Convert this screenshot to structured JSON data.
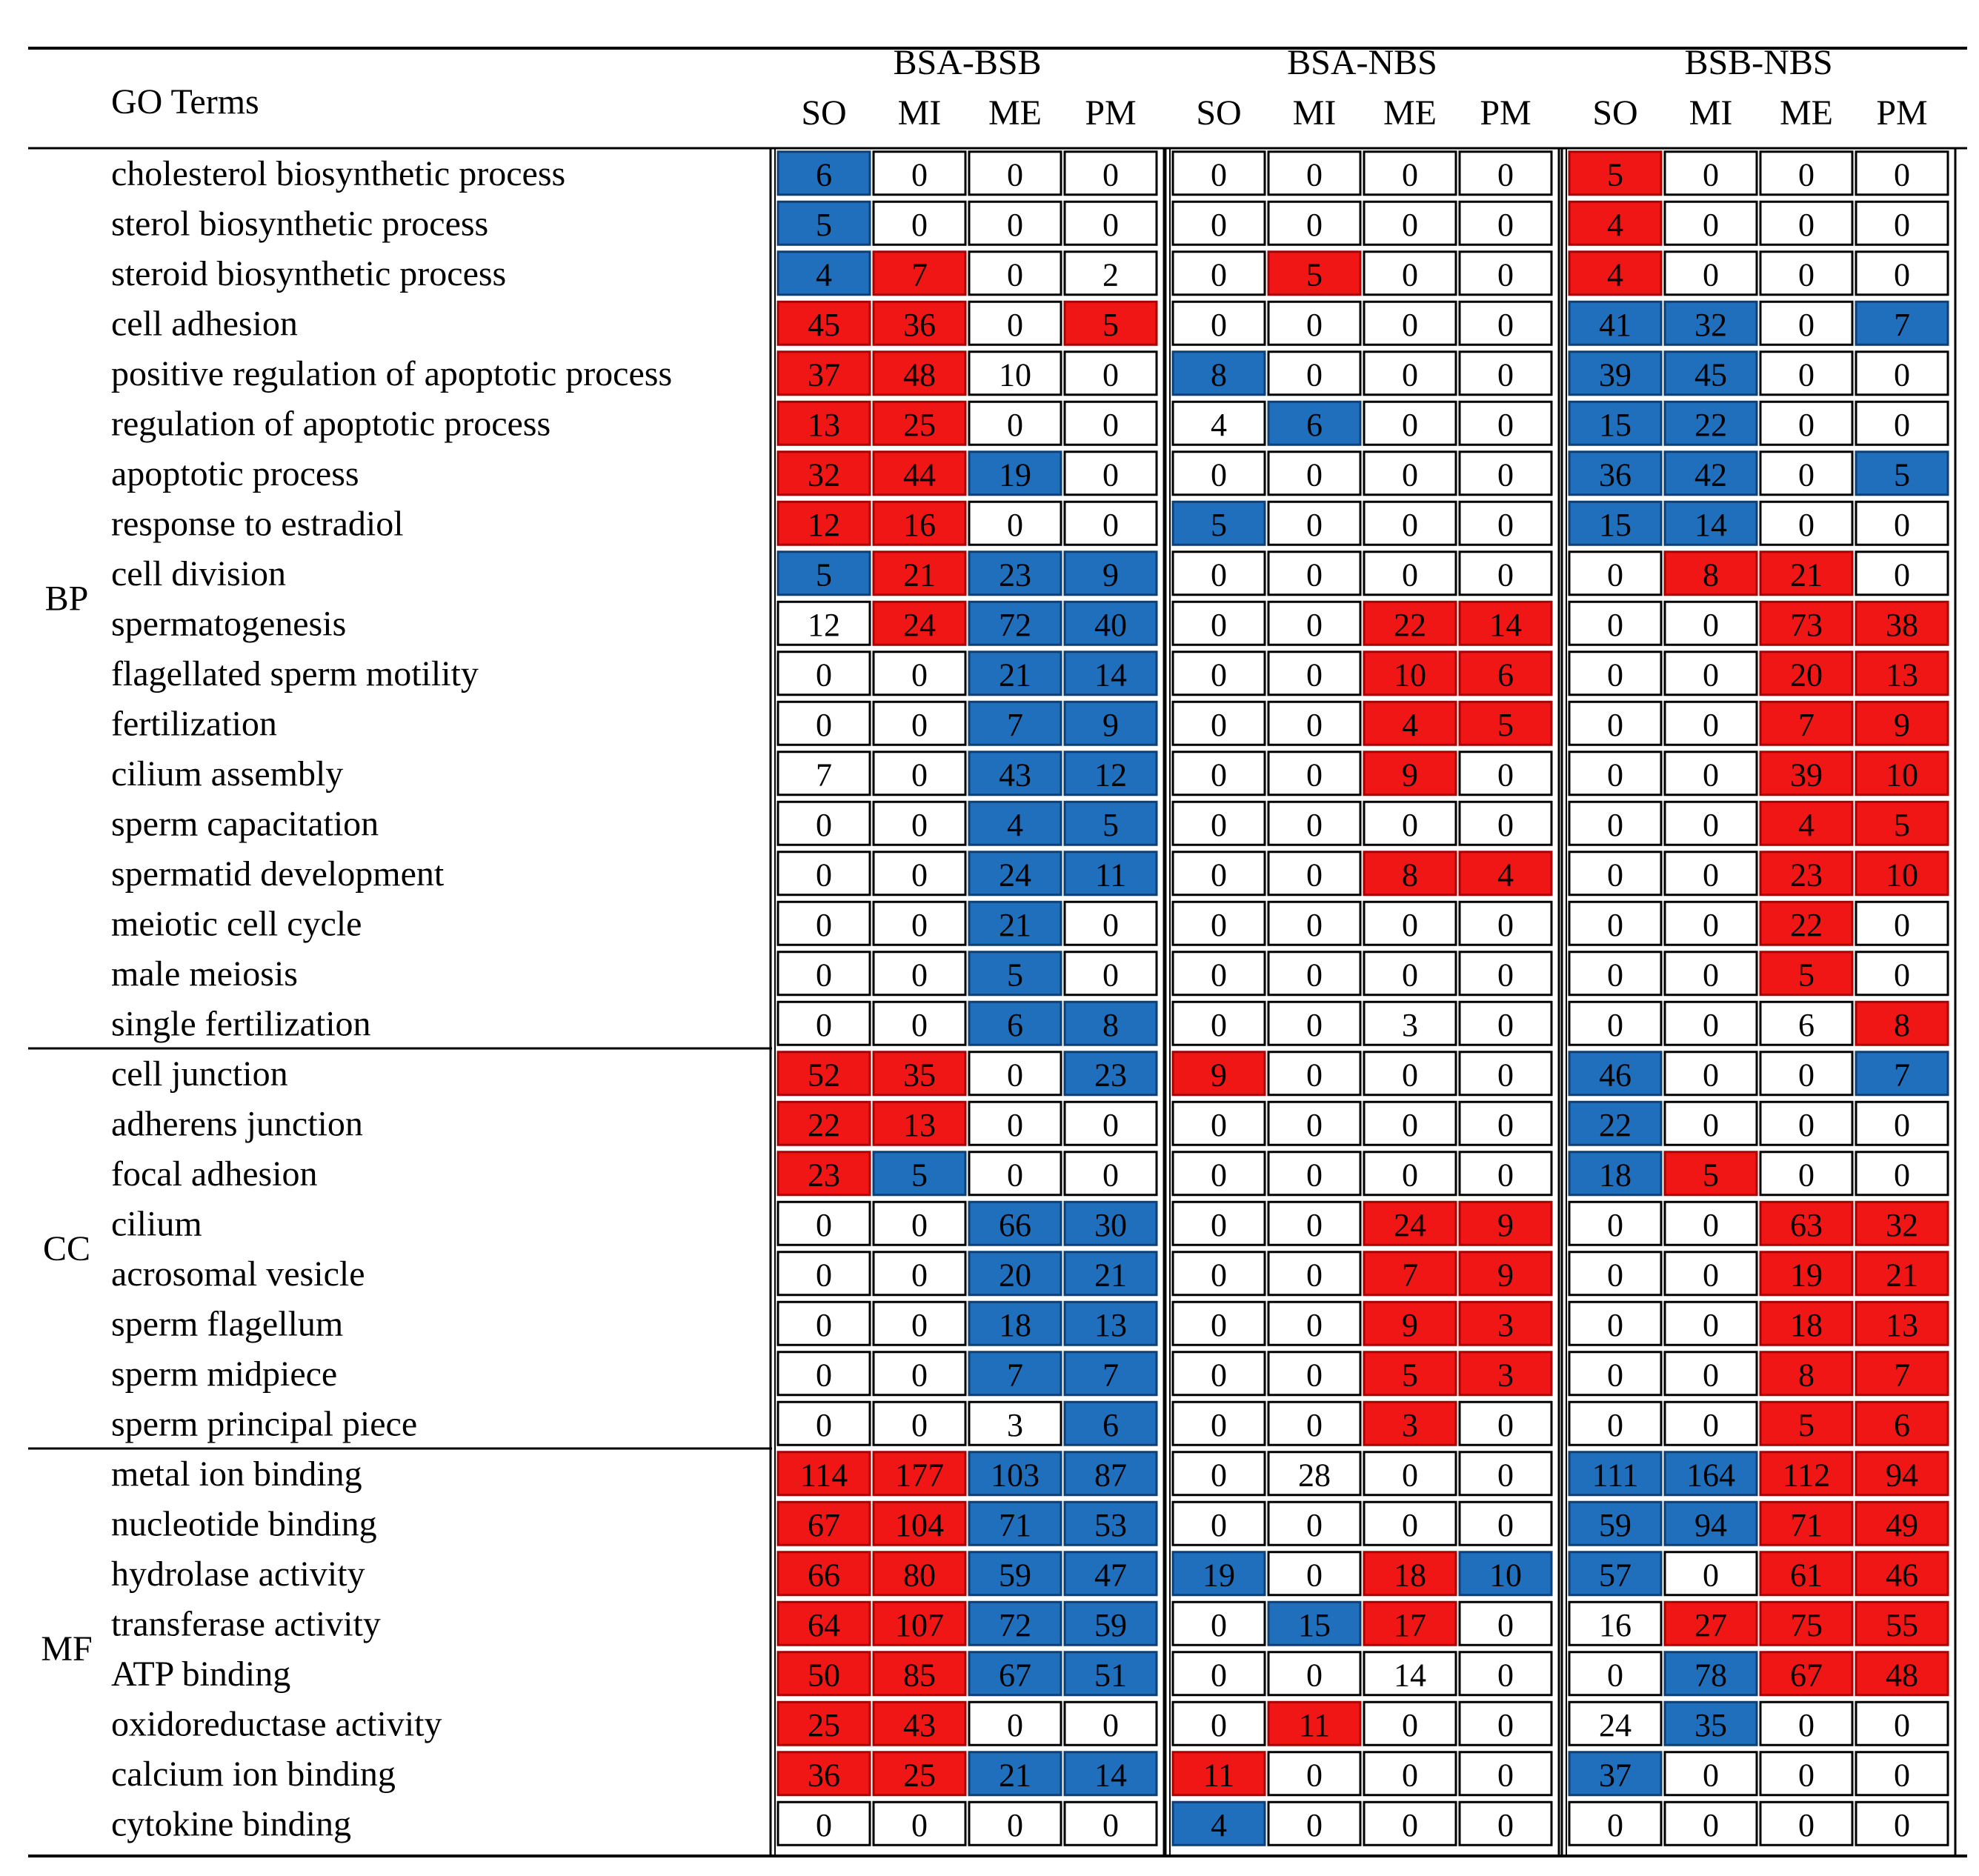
{
  "chart_data": {
    "type": "heatmap",
    "title": "",
    "term_header": "GO Terms",
    "groups": [
      {
        "name": "BSA-BSB",
        "columns": [
          "SO",
          "MI",
          "ME",
          "PM"
        ]
      },
      {
        "name": "BSA-NBS",
        "columns": [
          "SO",
          "MI",
          "ME",
          "PM"
        ]
      },
      {
        "name": "BSB-NBS",
        "columns": [
          "SO",
          "MI",
          "ME",
          "PM"
        ]
      }
    ],
    "categories": [
      {
        "name": "BP",
        "start": 0,
        "count": 18
      },
      {
        "name": "CC",
        "start": 18,
        "count": 8
      },
      {
        "name": "MF",
        "start": 26,
        "count": 8
      }
    ],
    "color_key": {
      "r": "#f01616",
      "b": "#1f6fbd",
      "w": "#ffffff"
    },
    "rows": [
      {
        "term": "cholesterol biosynthetic process",
        "values": [
          6,
          0,
          0,
          0,
          0,
          0,
          0,
          0,
          5,
          0,
          0,
          0
        ],
        "colors": "bwww wwww rwww"
      },
      {
        "term": "sterol biosynthetic process",
        "values": [
          5,
          0,
          0,
          0,
          0,
          0,
          0,
          0,
          4,
          0,
          0,
          0
        ],
        "colors": "bwww wwww rwww"
      },
      {
        "term": "steroid biosynthetic process",
        "values": [
          4,
          7,
          0,
          2,
          0,
          5,
          0,
          0,
          4,
          0,
          0,
          0
        ],
        "colors": "brww wrww rwww"
      },
      {
        "term": "cell adhesion",
        "values": [
          45,
          36,
          0,
          5,
          0,
          0,
          0,
          0,
          41,
          32,
          0,
          7
        ],
        "colors": "rrwr wwww bbwb"
      },
      {
        "term": "positive regulation of apoptotic process",
        "values": [
          37,
          48,
          10,
          0,
          8,
          0,
          0,
          0,
          39,
          45,
          0,
          0
        ],
        "colors": "rrww bwww bbww"
      },
      {
        "term": "regulation of apoptotic process",
        "values": [
          13,
          25,
          0,
          0,
          4,
          6,
          0,
          0,
          15,
          22,
          0,
          0
        ],
        "colors": "rrww wbww bbww"
      },
      {
        "term": "apoptotic process",
        "values": [
          32,
          44,
          19,
          0,
          0,
          0,
          0,
          0,
          36,
          42,
          0,
          5
        ],
        "colors": "rrbw wwww bbwb"
      },
      {
        "term": "response to estradiol",
        "values": [
          12,
          16,
          0,
          0,
          5,
          0,
          0,
          0,
          15,
          14,
          0,
          0
        ],
        "colors": "rrww bwww bbww"
      },
      {
        "term": "cell division",
        "values": [
          5,
          21,
          23,
          9,
          0,
          0,
          0,
          0,
          0,
          8,
          21,
          0
        ],
        "colors": "brbb wwww wrrw"
      },
      {
        "term": "spermatogenesis",
        "values": [
          12,
          24,
          72,
          40,
          0,
          0,
          22,
          14,
          0,
          0,
          73,
          38
        ],
        "colors": "wrbb wwrr wwrr"
      },
      {
        "term": "flagellated sperm motility",
        "values": [
          0,
          0,
          21,
          14,
          0,
          0,
          10,
          6,
          0,
          0,
          20,
          13
        ],
        "colors": "wwbb wwrr wwrr"
      },
      {
        "term": "fertilization",
        "values": [
          0,
          0,
          7,
          9,
          0,
          0,
          4,
          5,
          0,
          0,
          7,
          9
        ],
        "colors": "wwbb wwrr wwrr"
      },
      {
        "term": "cilium assembly",
        "values": [
          7,
          0,
          43,
          12,
          0,
          0,
          9,
          0,
          0,
          0,
          39,
          10
        ],
        "colors": "wwbb wwrw wwrr"
      },
      {
        "term": "sperm capacitation",
        "values": [
          0,
          0,
          4,
          5,
          0,
          0,
          0,
          0,
          0,
          0,
          4,
          5
        ],
        "colors": "wwbb wwww wwrr"
      },
      {
        "term": "spermatid development",
        "values": [
          0,
          0,
          24,
          11,
          0,
          0,
          8,
          4,
          0,
          0,
          23,
          10
        ],
        "colors": "wwbb wwrr wwrr"
      },
      {
        "term": "meiotic cell cycle",
        "values": [
          0,
          0,
          21,
          0,
          0,
          0,
          0,
          0,
          0,
          0,
          22,
          0
        ],
        "colors": "wwbw wwww wwrw"
      },
      {
        "term": "male meiosis",
        "values": [
          0,
          0,
          5,
          0,
          0,
          0,
          0,
          0,
          0,
          0,
          5,
          0
        ],
        "colors": "wwbw wwww wwrw"
      },
      {
        "term": "single fertilization",
        "values": [
          0,
          0,
          6,
          8,
          0,
          0,
          3,
          0,
          0,
          0,
          6,
          8
        ],
        "colors": "wwbb wwww wwwr"
      },
      {
        "term": "cell junction",
        "values": [
          52,
          35,
          0,
          23,
          9,
          0,
          0,
          0,
          46,
          0,
          0,
          7
        ],
        "colors": "rrwb rwww bwwb"
      },
      {
        "term": "adherens junction",
        "values": [
          22,
          13,
          0,
          0,
          0,
          0,
          0,
          0,
          22,
          0,
          0,
          0
        ],
        "colors": "rrww wwww bwww"
      },
      {
        "term": "focal adhesion",
        "values": [
          23,
          5,
          0,
          0,
          0,
          0,
          0,
          0,
          18,
          5,
          0,
          0
        ],
        "colors": "rbww wwww brww"
      },
      {
        "term": "cilium",
        "values": [
          0,
          0,
          66,
          30,
          0,
          0,
          24,
          9,
          0,
          0,
          63,
          32
        ],
        "colors": "wwbb wwrr wwrr"
      },
      {
        "term": "acrosomal vesicle",
        "values": [
          0,
          0,
          20,
          21,
          0,
          0,
          7,
          9,
          0,
          0,
          19,
          21
        ],
        "colors": "wwbb wwrr wwrr"
      },
      {
        "term": "sperm flagellum",
        "values": [
          0,
          0,
          18,
          13,
          0,
          0,
          9,
          3,
          0,
          0,
          18,
          13
        ],
        "colors": "wwbb wwrr wwrr"
      },
      {
        "term": "sperm midpiece",
        "values": [
          0,
          0,
          7,
          7,
          0,
          0,
          5,
          3,
          0,
          0,
          8,
          7
        ],
        "colors": "wwbb wwrr wwrr"
      },
      {
        "term": "sperm principal piece",
        "values": [
          0,
          0,
          3,
          6,
          0,
          0,
          3,
          0,
          0,
          0,
          5,
          6
        ],
        "colors": "wwwb wwrw wwrr"
      },
      {
        "term": "metal ion binding",
        "values": [
          114,
          177,
          103,
          87,
          0,
          28,
          0,
          0,
          111,
          164,
          112,
          94
        ],
        "colors": "rrbb wwww bbrr"
      },
      {
        "term": "nucleotide binding",
        "values": [
          67,
          104,
          71,
          53,
          0,
          0,
          0,
          0,
          59,
          94,
          71,
          49
        ],
        "colors": "rrbb wwww bbrr"
      },
      {
        "term": "hydrolase activity",
        "values": [
          66,
          80,
          59,
          47,
          19,
          0,
          18,
          10,
          57,
          0,
          61,
          46
        ],
        "colors": "rrbb bwrb bwrr"
      },
      {
        "term": "transferase activity",
        "values": [
          64,
          107,
          72,
          59,
          0,
          15,
          17,
          0,
          16,
          27,
          75,
          55
        ],
        "colors": "rrbb wbrw wrrr"
      },
      {
        "term": "ATP binding",
        "values": [
          50,
          85,
          67,
          51,
          0,
          0,
          14,
          0,
          0,
          78,
          67,
          48
        ],
        "colors": "rrbb wwww wbrr"
      },
      {
        "term": "oxidoreductase activity",
        "values": [
          25,
          43,
          0,
          0,
          0,
          11,
          0,
          0,
          24,
          35,
          0,
          0
        ],
        "colors": "rrww wrww wbww"
      },
      {
        "term": "calcium ion binding",
        "values": [
          36,
          25,
          21,
          14,
          11,
          0,
          0,
          0,
          37,
          0,
          0,
          0
        ],
        "colors": "rrbb rwww bwww"
      },
      {
        "term": "cytokine binding",
        "values": [
          0,
          0,
          0,
          0,
          4,
          0,
          0,
          0,
          0,
          0,
          0,
          0
        ],
        "colors": "wwww bwww wwww"
      }
    ]
  }
}
